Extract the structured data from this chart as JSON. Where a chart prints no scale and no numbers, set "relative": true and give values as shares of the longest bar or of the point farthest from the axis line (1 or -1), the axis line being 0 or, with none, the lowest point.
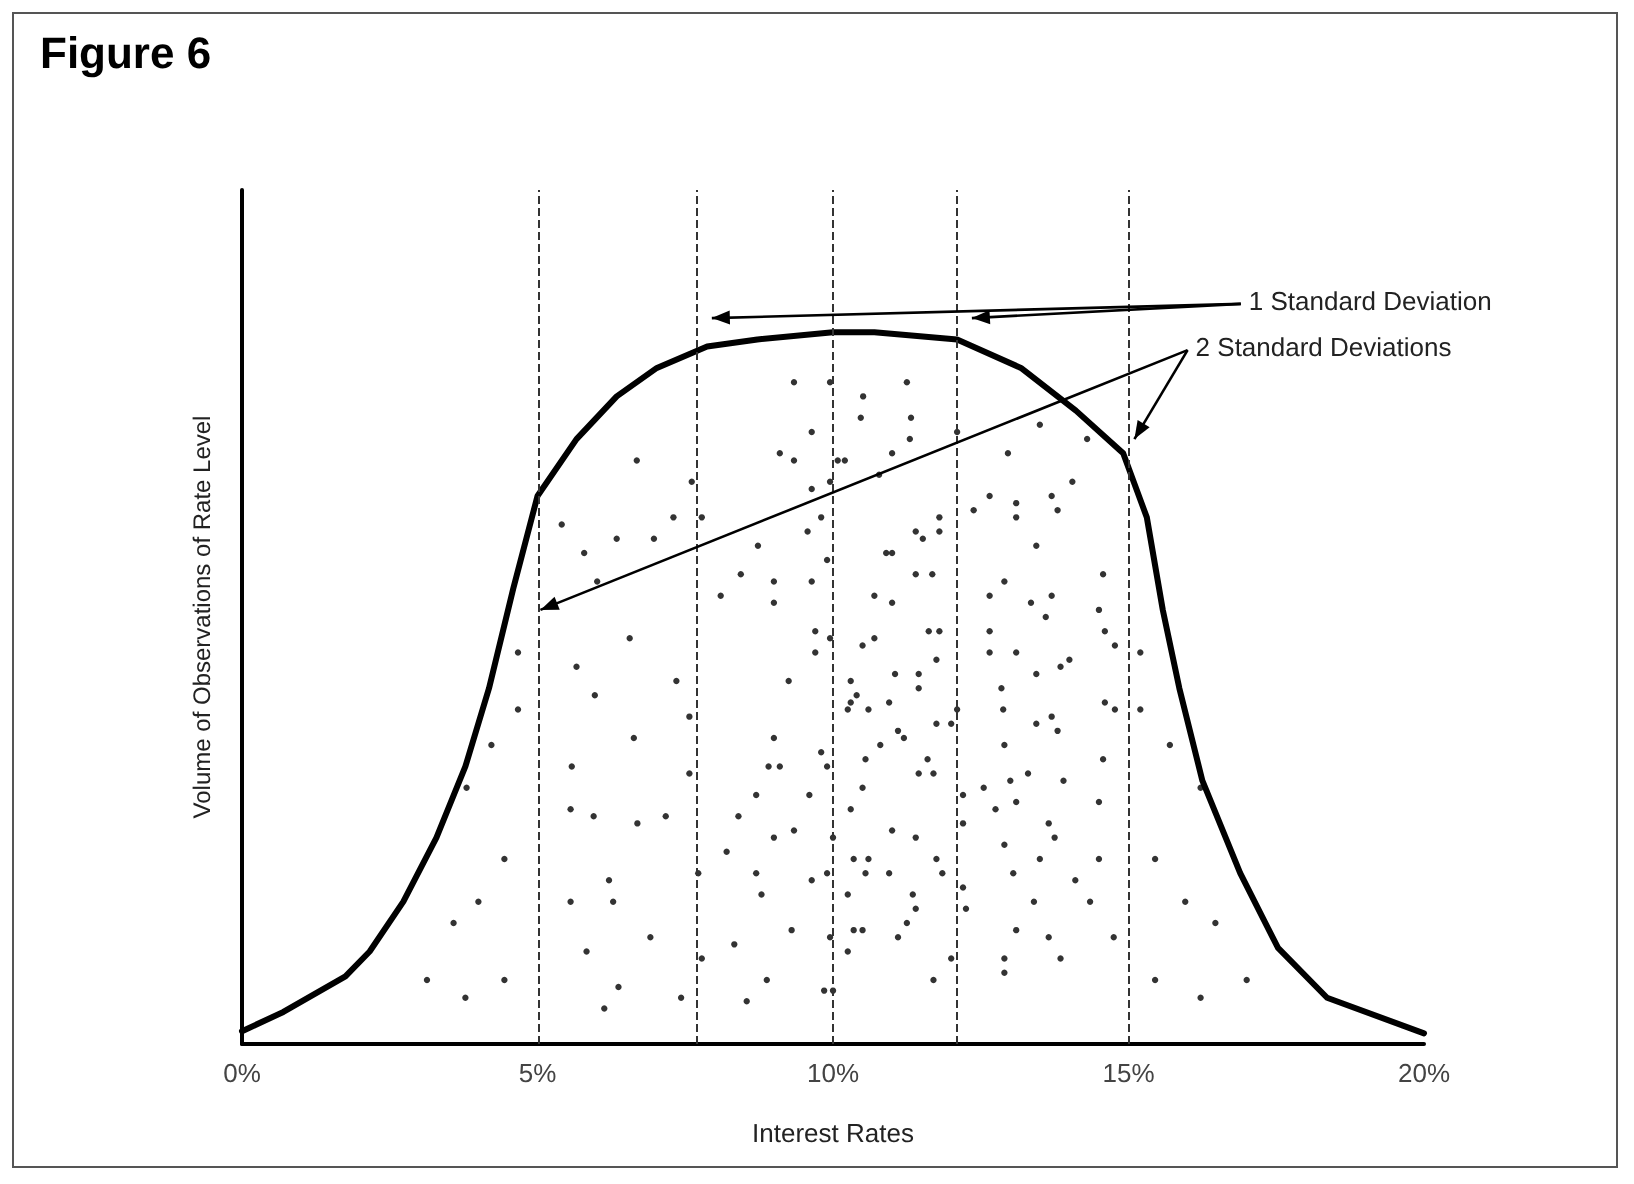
{
  "chart_data": {
    "type": "line",
    "title": "Figure 6",
    "xlabel": "Interest Rates",
    "ylabel": "Volume of Observations of Rate Level",
    "relative": true,
    "grid": false,
    "xlim": [
      0,
      20
    ],
    "xticks": [
      {
        "value": 0,
        "label": "0%"
      },
      {
        "value": 5,
        "label": "5%"
      },
      {
        "value": 10,
        "label": "10%"
      },
      {
        "value": 15,
        "label": "15%"
      },
      {
        "value": 20,
        "label": "20%"
      }
    ],
    "annotations": [
      "1 Standard Deviation",
      "2 Standard Deviations"
    ],
    "ref_lines": [
      {
        "axis": "x",
        "value": 5,
        "line_style": "dashed",
        "color": "#333333"
      },
      {
        "axis": "x",
        "value": 7.7,
        "line_style": "dashed",
        "color": "#333333"
      },
      {
        "axis": "x",
        "value": 10,
        "line_style": "dashed",
        "color": "#333333"
      },
      {
        "axis": "x",
        "value": 12.1,
        "line_style": "dashed",
        "color": "#333333"
      },
      {
        "axis": "x",
        "value": 15,
        "line_style": "dashed",
        "color": "#333333"
      }
    ],
    "series": [
      {
        "color": "#000000",
        "marker": "none",
        "line_style": "solid",
        "x": [
          0,
          0.7,
          1.75,
          2.16,
          2.73,
          3.29,
          3.78,
          4.18,
          4.59,
          5.0,
          5.66,
          6.34,
          7.02,
          7.87,
          8.72,
          10.0,
          10.7,
          12.1,
          13.18,
          14.11,
          14.91,
          15.31,
          15.58,
          15.86,
          16.25,
          16.89,
          17.53,
          18.36,
          20
        ],
        "values": [
          0.018,
          0.045,
          0.095,
          0.13,
          0.2,
          0.29,
          0.39,
          0.5,
          0.64,
          0.77,
          0.85,
          0.91,
          0.95,
          0.98,
          0.99,
          1.0,
          1.0,
          0.99,
          0.95,
          0.89,
          0.83,
          0.74,
          0.61,
          0.5,
          0.37,
          0.24,
          0.135,
          0.065,
          0.015
        ]
      },
      {
        "type": "scatter",
        "color": "#000000",
        "marker": "circle",
        "x": [
          3.13,
          3.78,
          3.58,
          4.0,
          4.22,
          4.44,
          4.44,
          4.67,
          4.67,
          3.8,
          5.41,
          5.79,
          6.01,
          5.66,
          5.58,
          5.56,
          5.56,
          5.83,
          6.13,
          6.34,
          6.68,
          6.97,
          6.56,
          5.97,
          5.95,
          6.21,
          6.28,
          6.91,
          6.37,
          7.43,
          7.3,
          7.61,
          7.78,
          7.35,
          7.57,
          6.63,
          6.69,
          7.17,
          7.57,
          7.72,
          7.78,
          8.1,
          8.44,
          8.73,
          8.54,
          8.88,
          8.79,
          8.7,
          8.33,
          8.2,
          8.4,
          8.7,
          8.91,
          9.0,
          9.1,
          9.0,
          9.34,
          9.3,
          9.64,
          9.9,
          9.95,
          9.85,
          9.6,
          9.8,
          9.9,
          10.0,
          9.34,
          9.95,
          9.64,
          9.1,
          9.34,
          9.64,
          9.95,
          10.2,
          9.8,
          9.57,
          9.9,
          9.64,
          9.0,
          9.0,
          9.7,
          9.7,
          9.25,
          9.95,
          10.3,
          10.25,
          10.4,
          10.5,
          11.25,
          10.51,
          11.32,
          10.47,
          11.3,
          10.08,
          11.0,
          12.1,
          10.78,
          12.96,
          13.5,
          14.3,
          14.05,
          12.65,
          12.38,
          13.1,
          13.1,
          13.7,
          13.8,
          13.44,
          11.8,
          11.52,
          11.8,
          11.4,
          11.68,
          11.4,
          11.0,
          10.9,
          10.7,
          11.0,
          12.65,
          12.9,
          13.35,
          13.7,
          13.6,
          14.57,
          14.5,
          14.6,
          14.77,
          15.2,
          15.2,
          14.6,
          14.77,
          14.0,
          13.85,
          13.44,
          13.1,
          12.65,
          12.65,
          11.62,
          11.8,
          11.75,
          11.45,
          11.05,
          10.95,
          11.45,
          10.7,
          10.6,
          10.3,
          12.88,
          12.85,
          13.44,
          13.7,
          13.8,
          12.9,
          12.1,
          11.75,
          12.0,
          11.1,
          11.2,
          10.8,
          10.55,
          11.6,
          11.7,
          11.45,
          10.5,
          10.3,
          12.2,
          12.55,
          13.0,
          13.3,
          13.9,
          12.75,
          13.1,
          12.2,
          12.9,
          13.65,
          13.75,
          13.5,
          14.57,
          14.5,
          14.5,
          14.1,
          14.35,
          14.75,
          15.45,
          15.96,
          15.7,
          16.22,
          16.47,
          15.45,
          16.22,
          17.0,
          13.85,
          13.65,
          13.1,
          12.9,
          12.9,
          13.4,
          13.05,
          12.25,
          12.2,
          12.0,
          11.7,
          11.4,
          11.35,
          11.25,
          11.1,
          11.4,
          11.75,
          11.85,
          10.95,
          10.55,
          10.6,
          11.0,
          10.35,
          10.25,
          10.35,
          10.5,
          10.25,
          10.0
        ],
        "values": [
          0.09,
          0.065,
          0.17,
          0.2,
          0.42,
          0.26,
          0.09,
          0.55,
          0.47,
          0.36,
          0.73,
          0.69,
          0.65,
          0.53,
          0.39,
          0.33,
          0.2,
          0.13,
          0.05,
          0.71,
          0.82,
          0.71,
          0.57,
          0.49,
          0.32,
          0.23,
          0.2,
          0.15,
          0.08,
          0.065,
          0.74,
          0.79,
          0.74,
          0.51,
          0.46,
          0.43,
          0.31,
          0.32,
          0.38,
          0.24,
          0.12,
          0.63,
          0.66,
          0.7,
          0.06,
          0.09,
          0.21,
          0.24,
          0.14,
          0.27,
          0.32,
          0.35,
          0.39,
          0.43,
          0.39,
          0.29,
          0.3,
          0.16,
          0.23,
          0.24,
          0.15,
          0.075,
          0.35,
          0.41,
          0.39,
          0.29,
          0.93,
          0.93,
          0.86,
          0.83,
          0.82,
          0.78,
          0.79,
          0.82,
          0.74,
          0.72,
          0.68,
          0.65,
          0.65,
          0.62,
          0.58,
          0.55,
          0.51,
          0.57,
          0.51,
          0.47,
          0.49,
          0.56,
          0.93,
          0.91,
          0.88,
          0.88,
          0.85,
          0.82,
          0.83,
          0.86,
          0.8,
          0.83,
          0.87,
          0.85,
          0.79,
          0.77,
          0.75,
          0.76,
          0.74,
          0.77,
          0.75,
          0.7,
          0.74,
          0.71,
          0.72,
          0.72,
          0.66,
          0.66,
          0.69,
          0.69,
          0.63,
          0.62,
          0.63,
          0.65,
          0.62,
          0.63,
          0.6,
          0.66,
          0.61,
          0.58,
          0.56,
          0.55,
          0.47,
          0.48,
          0.47,
          0.54,
          0.53,
          0.52,
          0.55,
          0.58,
          0.55,
          0.58,
          0.58,
          0.54,
          0.52,
          0.52,
          0.48,
          0.5,
          0.57,
          0.47,
          0.48,
          0.47,
          0.5,
          0.45,
          0.46,
          0.44,
          0.42,
          0.47,
          0.45,
          0.45,
          0.44,
          0.43,
          0.42,
          0.4,
          0.4,
          0.38,
          0.38,
          0.36,
          0.33,
          0.35,
          0.36,
          0.37,
          0.38,
          0.37,
          0.33,
          0.34,
          0.31,
          0.28,
          0.31,
          0.29,
          0.26,
          0.4,
          0.34,
          0.26,
          0.23,
          0.2,
          0.15,
          0.26,
          0.2,
          0.42,
          0.36,
          0.17,
          0.09,
          0.065,
          0.09,
          0.12,
          0.15,
          0.16,
          0.12,
          0.1,
          0.2,
          0.24,
          0.19,
          0.22,
          0.12,
          0.09,
          0.19,
          0.21,
          0.17,
          0.15,
          0.29,
          0.26,
          0.24,
          0.24,
          0.24,
          0.26,
          0.3,
          0.26,
          0.21,
          0.16,
          0.16,
          0.13,
          0.075
        ]
      }
    ]
  }
}
